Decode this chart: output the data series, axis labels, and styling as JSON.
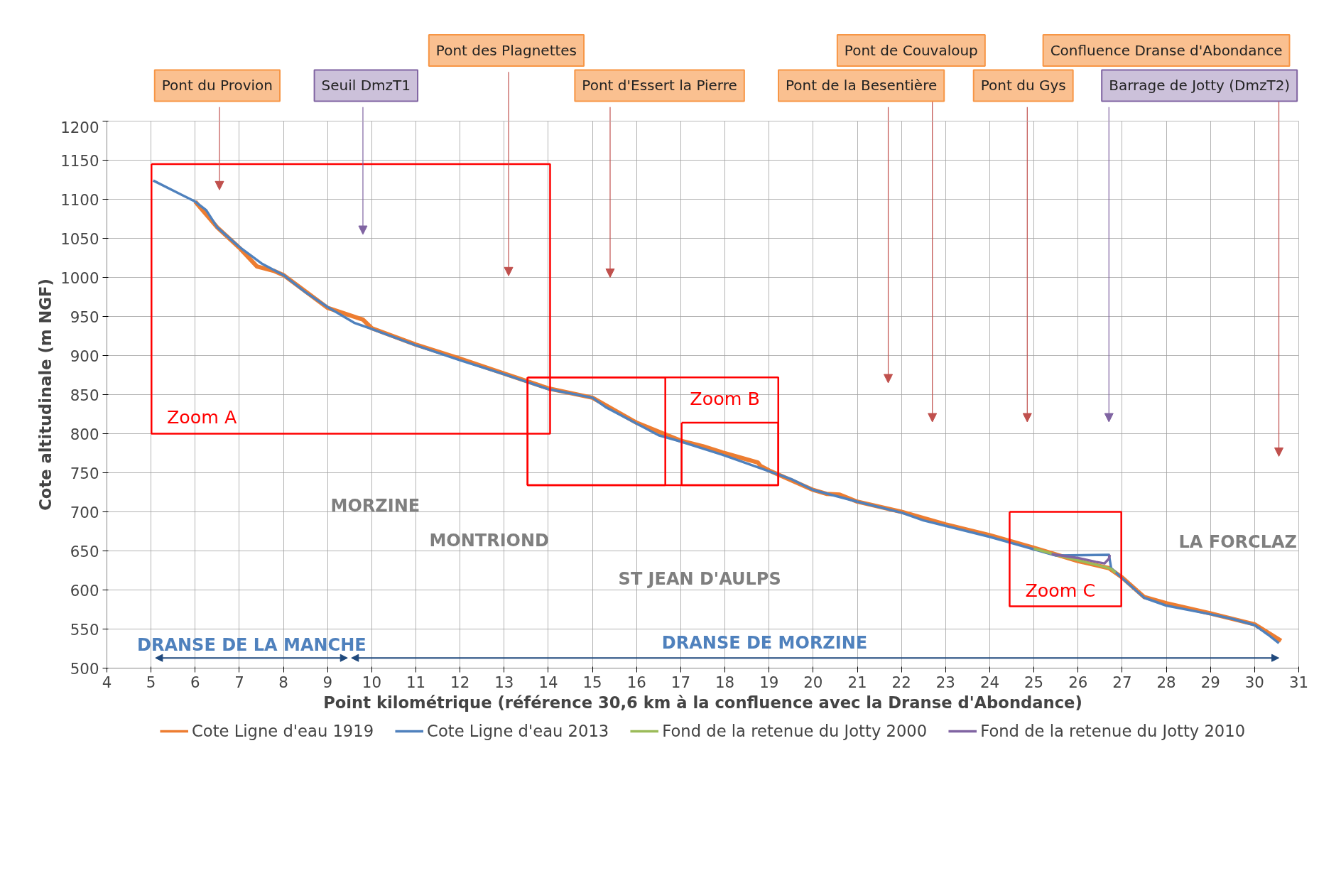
{
  "chart_data": {
    "type": "line",
    "xlabel": "Point kilométrique (référence 30,6 km à la confluence avec la Dranse d'Abondance)",
    "ylabel": "Cote altitudinale (m NGF)",
    "xlim": [
      4,
      31
    ],
    "xticks": [
      4,
      5,
      6,
      7,
      8,
      9,
      10,
      11,
      12,
      13,
      14,
      15,
      16,
      17,
      18,
      19,
      20,
      21,
      22,
      23,
      24,
      25,
      26,
      27,
      28,
      29,
      30,
      31
    ],
    "ylim": [
      500,
      1200
    ],
    "yticks": [
      500,
      550,
      600,
      650,
      700,
      750,
      800,
      850,
      900,
      950,
      1000,
      1050,
      1100,
      1150,
      1200
    ],
    "grid": true,
    "legend": "bottom",
    "marker": "none",
    "line_style": "solid",
    "series": [
      {
        "name": "Cote Ligne d'eau 1919",
        "color": "#ed7d31",
        "x": [
          6.0,
          6.5,
          7.0,
          7.4,
          7.8,
          8.0,
          9.0,
          9.8,
          10.0,
          11.0,
          12.0,
          13.0,
          14.0,
          15.0,
          16.0,
          17.0,
          17.5,
          18.0,
          18.75,
          18.8,
          19.0,
          20.0,
          20.3,
          20.6,
          21.0,
          22.0,
          23.0,
          24.0,
          25.0,
          26.0,
          26.7,
          27.0,
          27.5,
          28.0,
          29.0,
          30.0,
          30.6
        ],
        "values": [
          1097,
          1064,
          1038,
          1014,
          1008,
          1003,
          961,
          946,
          935,
          914,
          896,
          877,
          858,
          846,
          814,
          791,
          784,
          775,
          763,
          759,
          753,
          728,
          723,
          722,
          713,
          700,
          684,
          670,
          654,
          637,
          628,
          616,
          591,
          583,
          570,
          556,
          535
        ]
      },
      {
        "name": "Cote Ligne d'eau 2013",
        "color": "#4f81bd",
        "x": [
          5.05,
          6.0,
          6.25,
          6.5,
          7.0,
          7.5,
          8.0,
          8.5,
          9.0,
          9.6,
          10.0,
          11.0,
          12.0,
          13.0,
          14.0,
          15.0,
          15.3,
          16.0,
          16.5,
          17.0,
          18.0,
          19.0,
          19.5,
          20.0,
          21.0,
          22.0,
          22.5,
          23.0,
          24.0,
          25.0,
          25.5,
          26.7,
          26.75,
          27.0,
          27.2,
          27.5,
          28.0,
          29.0,
          29.5,
          30.0,
          30.3,
          30.55
        ],
        "values": [
          1124,
          1097,
          1086,
          1064,
          1039,
          1018,
          1003,
          981,
          962,
          942,
          934,
          913,
          894,
          876,
          857,
          846,
          834,
          813,
          798,
          790,
          772,
          752,
          742,
          728,
          713,
          699,
          689,
          682,
          668,
          652,
          644,
          645,
          628,
          615,
          605,
          590,
          580,
          569,
          563,
          555,
          543,
          532
        ]
      },
      {
        "name": "Fond de la retenue du Jotty 2000",
        "color": "#9bbb59",
        "x": [
          25.0,
          25.5,
          26.0,
          26.5,
          26.75,
          26.85
        ],
        "values": [
          653,
          645,
          638,
          631,
          627,
          622
        ]
      },
      {
        "name": "Fond de la retenue du Jotty 2010",
        "color": "#8064a2",
        "x": [
          25.4,
          26.0,
          26.4,
          26.6,
          26.7,
          26.72
        ],
        "values": [
          646,
          641,
          636,
          634,
          640,
          645
        ]
      }
    ],
    "annotations": [
      "Pont du Provion",
      "Seuil DmzT1",
      "Pont des Plagnettes",
      "Pont d'Essert la Pierre",
      "Pont de la Besentière",
      "Pont de Couvaloup",
      "Pont du Gys",
      "Barrage de Jotty (DmzT2)",
      "Confluence Dranse d'Abondance",
      "MORZINE",
      "MONTRIOND",
      "ST JEAN D'AULPS",
      "LA FORCLAZ",
      "Zoom A",
      "Zoom B",
      "Zoom C",
      "DRANSE DE LA MANCHE",
      "DRANSE DE MORZINE"
    ]
  }
}
